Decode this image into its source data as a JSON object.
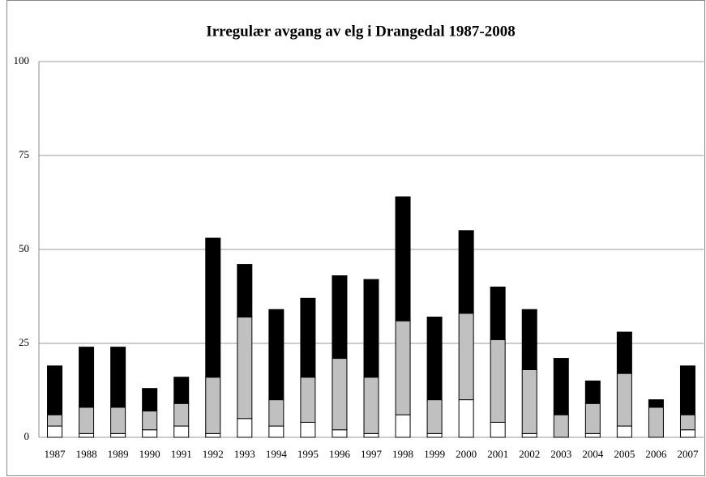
{
  "chart_data": {
    "type": "stacked-bar",
    "title": "Irregulær avgang av elg i Drangedal 1987-2008",
    "categories": [
      "1987",
      "1988",
      "1989",
      "1990",
      "1991",
      "1992",
      "1993",
      "1994",
      "1995",
      "1996",
      "1997",
      "1998",
      "1999",
      "2000",
      "2001",
      "2002",
      "2003",
      "2004",
      "2005",
      "2006",
      "2007"
    ],
    "series": [
      {
        "color": "#ffffff",
        "values": [
          3,
          1,
          1,
          2,
          3,
          1,
          5,
          3,
          4,
          2,
          1,
          6,
          1,
          10,
          4,
          1,
          0,
          1,
          3,
          0,
          2
        ]
      },
      {
        "color": "#c0c0c0",
        "values": [
          3,
          7,
          7,
          5,
          6,
          15,
          27,
          7,
          12,
          19,
          15,
          25,
          9,
          23,
          22,
          17,
          6,
          8,
          14,
          8,
          4
        ]
      },
      {
        "color": "#000000",
        "values": [
          13,
          16,
          16,
          6,
          7,
          37,
          14,
          24,
          21,
          22,
          26,
          33,
          22,
          22,
          14,
          16,
          15,
          6,
          11,
          2,
          13
        ]
      }
    ],
    "ylim": [
      0,
      100
    ],
    "yticks": [
      0,
      25,
      50,
      75,
      100
    ],
    "grid": true
  }
}
